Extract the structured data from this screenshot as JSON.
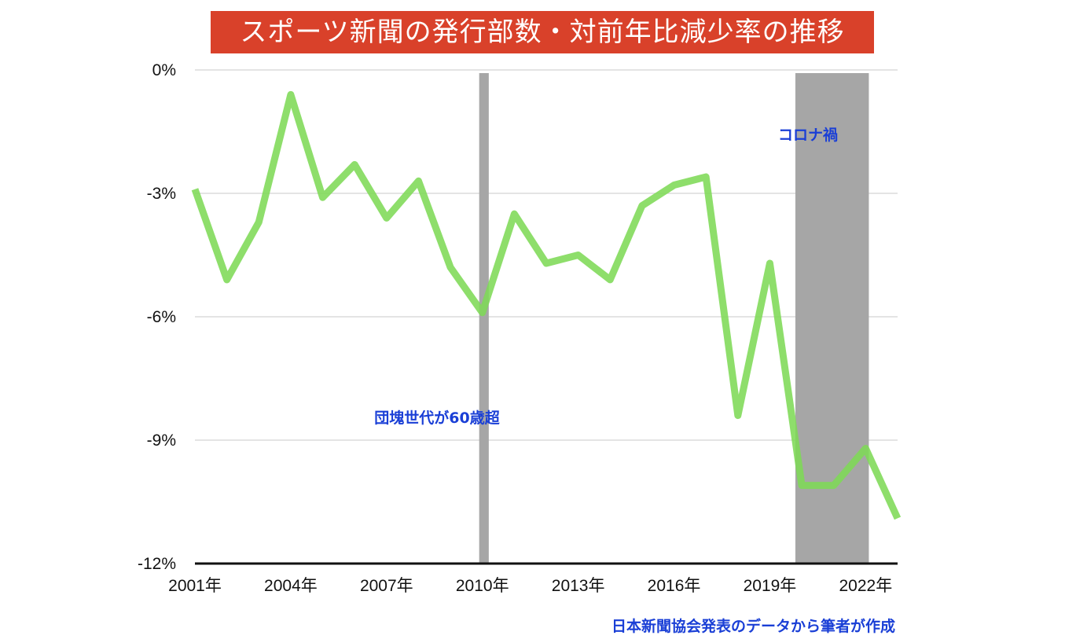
{
  "chart_data": {
    "type": "line",
    "title": "スポーツ新聞の発行部数・対前年比減少率の推移",
    "x": [
      2001,
      2002,
      2003,
      2004,
      2005,
      2006,
      2007,
      2008,
      2009,
      2010,
      2011,
      2012,
      2013,
      2014,
      2015,
      2016,
      2017,
      2018,
      2019,
      2020,
      2021,
      2022,
      2023
    ],
    "x_tick_labels": [
      "2001年",
      "2004年",
      "2007年",
      "2010年",
      "2013年",
      "2016年",
      "2019年",
      "2022年"
    ],
    "y_tick_labels": [
      "0%",
      "-3%",
      "-6%",
      "-9%",
      "-12%"
    ],
    "ylim": [
      -12,
      0
    ],
    "series": [
      {
        "values": [
          -2.9,
          -5.1,
          -3.7,
          -0.6,
          -3.1,
          -2.3,
          -3.6,
          -2.7,
          -4.8,
          -5.9,
          -3.5,
          -4.7,
          -4.5,
          -5.1,
          -3.3,
          -2.8,
          -2.6,
          -8.4,
          -4.7,
          -10.1,
          -10.1,
          -9.2,
          -10.9
        ],
        "color": "#7ed957"
      }
    ],
    "shaded_periods": [
      {
        "label": "団塊世代が60歳超",
        "start": 2009.9,
        "end": 2010.2
      },
      {
        "label": "コロナ禍",
        "start": 2019.8,
        "end": 2022.1
      }
    ],
    "grid": true,
    "source_note": "日本新聞協会発表のデータから筆者が作成"
  },
  "colors": {
    "title_bg": "#d9412a",
    "line": "#7ed957",
    "shade": "#a6a6a6",
    "annotation": "#1a3fd6",
    "grid": "#c8c8c8"
  }
}
